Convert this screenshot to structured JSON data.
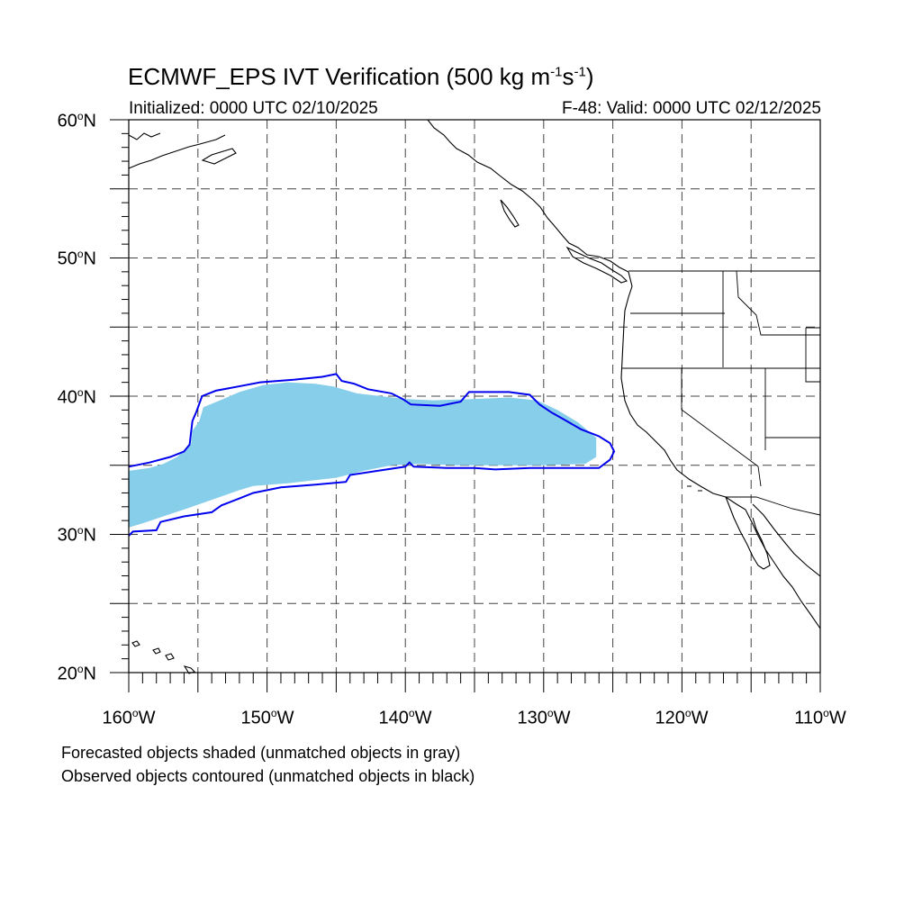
{
  "title": {
    "prefix": "ECMWF_EPS IVT Verification (500 kg m",
    "exp1": "-1",
    "mid": "s",
    "exp2": "-1",
    "suffix": ")"
  },
  "initialized": "Initialized: 0000 UTC 02/10/2025",
  "valid": "F-48: Valid: 0000 UTC 02/12/2025",
  "lat_labels": [
    {
      "num": "60",
      "deg": "o",
      "hemi": "N"
    },
    {
      "num": "50",
      "deg": "o",
      "hemi": "N"
    },
    {
      "num": "40",
      "deg": "o",
      "hemi": "N"
    },
    {
      "num": "30",
      "deg": "o",
      "hemi": "N"
    },
    {
      "num": "20",
      "deg": "o",
      "hemi": "N"
    }
  ],
  "lon_labels": [
    {
      "num": "160",
      "deg": "o",
      "hemi": "W"
    },
    {
      "num": "150",
      "deg": "o",
      "hemi": "W"
    },
    {
      "num": "140",
      "deg": "o",
      "hemi": "W"
    },
    {
      "num": "130",
      "deg": "o",
      "hemi": "W"
    },
    {
      "num": "120",
      "deg": "o",
      "hemi": "W"
    },
    {
      "num": "110",
      "deg": "o",
      "hemi": "W"
    }
  ],
  "map_extent": {
    "lon_min": -160,
    "lon_max": -110,
    "lat_min": 20,
    "lat_max": 60
  },
  "grid_lines": "dashed every 5 degrees",
  "colors": {
    "forecast_fill": "#87ceeb",
    "observed_contour": "#0000ee",
    "coast": "#000000"
  },
  "forecast_object_points": [
    [
      -160,
      34.6
    ],
    [
      -158.5,
      34.8
    ],
    [
      -157.5,
      35.1
    ],
    [
      -156.5,
      35.6
    ],
    [
      -156,
      36.1
    ],
    [
      -155.5,
      36.5
    ],
    [
      -155.4,
      37.5
    ],
    [
      -154.9,
      38.2
    ],
    [
      -154.6,
      39.2
    ],
    [
      -153.4,
      39.7
    ],
    [
      -152,
      40.3
    ],
    [
      -150.3,
      40.8
    ],
    [
      -148.5,
      41.0
    ],
    [
      -146.5,
      40.9
    ],
    [
      -145.2,
      40.7
    ],
    [
      -143.5,
      40.2
    ],
    [
      -140,
      39.8
    ],
    [
      -138,
      39.7
    ],
    [
      -135,
      39.8
    ],
    [
      -132.5,
      39.9
    ],
    [
      -130.5,
      39.7
    ],
    [
      -129,
      39.0
    ],
    [
      -127.5,
      38.1
    ],
    [
      -126.2,
      37.0
    ],
    [
      -126.2,
      35.6
    ],
    [
      -127.0,
      35.1
    ],
    [
      -130,
      35.0
    ],
    [
      -133,
      35.0
    ],
    [
      -136,
      35.0
    ],
    [
      -139,
      35.1
    ],
    [
      -141,
      35.0
    ],
    [
      -143,
      34.6
    ],
    [
      -145,
      34.1
    ],
    [
      -148.5,
      33.7
    ],
    [
      -151,
      33.5
    ],
    [
      -152,
      33.2
    ],
    [
      -154,
      32.5
    ],
    [
      -156,
      31.8
    ],
    [
      -157.5,
      31.3
    ],
    [
      -159,
      30.8
    ],
    [
      -160,
      30.5
    ]
  ],
  "observed_object_points": [
    [
      -160,
      29.9
    ],
    [
      -159.7,
      30.2
    ],
    [
      -158,
      30.3
    ],
    [
      -157.7,
      30.9
    ],
    [
      -156,
      31.3
    ],
    [
      -154,
      31.6
    ],
    [
      -153.3,
      32.1
    ],
    [
      -152,
      32.6
    ],
    [
      -151,
      33.0
    ],
    [
      -149,
      33.4
    ],
    [
      -146.5,
      33.6
    ],
    [
      -144.3,
      33.8
    ],
    [
      -144.0,
      34.3
    ],
    [
      -142,
      34.6
    ],
    [
      -140,
      34.9
    ],
    [
      -139.7,
      35.2
    ],
    [
      -139.4,
      34.9
    ],
    [
      -137,
      34.8
    ],
    [
      -135,
      34.8
    ],
    [
      -133.5,
      34.7
    ],
    [
      -131,
      34.8
    ],
    [
      -128,
      34.8
    ],
    [
      -126,
      34.8
    ],
    [
      -125.2,
      35.4
    ],
    [
      -124.9,
      36.0
    ],
    [
      -125.2,
      36.6
    ],
    [
      -126,
      37.1
    ],
    [
      -127.3,
      37.6
    ],
    [
      -128.5,
      38.3
    ],
    [
      -129.4,
      38.8
    ],
    [
      -130.3,
      39.4
    ],
    [
      -131.0,
      40.1
    ],
    [
      -132.5,
      40.3
    ],
    [
      -134.0,
      40.3
    ],
    [
      -135.4,
      40.3
    ],
    [
      -136,
      39.6
    ],
    [
      -137.5,
      39.3
    ],
    [
      -139.6,
      39.4
    ],
    [
      -140.2,
      39.8
    ],
    [
      -141.0,
      40.2
    ],
    [
      -142.7,
      40.5
    ],
    [
      -143.7,
      40.9
    ],
    [
      -144.6,
      41.1
    ],
    [
      -145.0,
      41.6
    ],
    [
      -146.0,
      41.4
    ],
    [
      -148.0,
      41.2
    ],
    [
      -150.5,
      41.0
    ],
    [
      -152.1,
      40.7
    ],
    [
      -153.7,
      40.4
    ],
    [
      -154.7,
      40.0
    ],
    [
      -155.1,
      38.9
    ],
    [
      -155.4,
      38.2
    ],
    [
      -155.6,
      36.5
    ],
    [
      -156.0,
      36.0
    ],
    [
      -157.0,
      35.6
    ],
    [
      -158.5,
      35.2
    ],
    [
      -160,
      34.9
    ]
  ],
  "footnote_forecast": "Forecasted objects shaded (unmatched objects in gray)",
  "footnote_observed": "Observed objects contoured (unmatched objects in black)"
}
